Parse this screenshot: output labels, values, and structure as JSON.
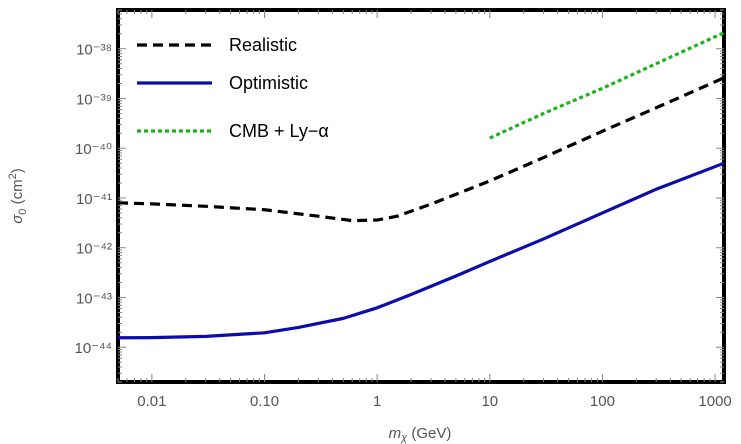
{
  "chart_data": {
    "type": "line",
    "xscale": "log",
    "yscale": "log",
    "xlim": [
      0.005,
      1200
    ],
    "ylim": [
      2e-45,
      6e-38
    ],
    "xlabel": "m_χ (GeV)",
    "ylabel": "σ_0 (cm^2)",
    "x_ticks": [
      0.01,
      0.1,
      1,
      10,
      100,
      1000
    ],
    "x_tick_labels": [
      "0.01",
      "0.10",
      "1",
      "10",
      "100",
      "1000"
    ],
    "y_ticks": [
      1e-44,
      1e-43,
      1e-42,
      1e-41,
      1e-40,
      1e-39,
      1e-38
    ],
    "y_tick_labels": [
      "10⁻⁴⁴",
      "10⁻⁴³",
      "10⁻⁴²",
      "10⁻⁴¹",
      "10⁻⁴⁰",
      "10⁻³⁹",
      "10⁻³⁸"
    ],
    "legend_position": "top-left",
    "grid": false,
    "series": [
      {
        "name": "Realistic",
        "color": "#000000",
        "style": "dashed",
        "x": [
          0.005,
          0.01,
          0.03,
          0.1,
          0.3,
          0.6,
          1,
          1.5,
          3,
          10,
          30,
          100,
          300,
          1200
        ],
        "y": [
          8e-42,
          7.6e-42,
          6.8e-42,
          5.8e-42,
          4.3e-42,
          3.5e-42,
          3.6e-42,
          4.3e-42,
          7.5e-42,
          2.2e-41,
          6.5e-41,
          2.2e-40,
          6.5e-40,
          2.6e-39
        ]
      },
      {
        "name": "Optimistic",
        "color": "#0c0cab",
        "style": "solid",
        "x": [
          0.005,
          0.01,
          0.03,
          0.1,
          0.2,
          0.5,
          1,
          2,
          5,
          10,
          30,
          100,
          300,
          1200
        ],
        "y": [
          1.55e-44,
          1.56e-44,
          1.65e-44,
          1.95e-44,
          2.5e-44,
          3.8e-44,
          6.2e-44,
          1.15e-43,
          2.7e-43,
          5.3e-43,
          1.5e-42,
          5e-42,
          1.5e-41,
          5e-41
        ]
      },
      {
        "name": "CMB + Ly−α",
        "color": "#1db31d",
        "style": "dotted",
        "x": [
          10,
          30,
          100,
          300,
          1200
        ],
        "y": [
          1.6e-40,
          5e-40,
          1.6e-39,
          5e-39,
          2.1e-38
        ]
      }
    ]
  }
}
